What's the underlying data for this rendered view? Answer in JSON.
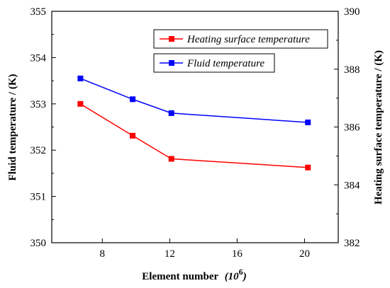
{
  "chart_data": {
    "type": "line",
    "xlabel": "Element number",
    "xlabel_unit": "(10",
    "xlabel_exp": "6",
    "xlabel_close": ")",
    "ylabel_left": "Fluid temperature / (K)",
    "ylabel_right": "Heating surface temperature / (K)",
    "xlim": [
      5,
      22
    ],
    "xticks": [
      8,
      12,
      16,
      20
    ],
    "ylim_left": [
      350,
      355
    ],
    "yticks_left": [
      350,
      351,
      352,
      353,
      354,
      355
    ],
    "ylim_right": [
      382,
      390
    ],
    "yticks_right": [
      382,
      384,
      386,
      388,
      390
    ],
    "legend_placement": "top-right",
    "series": [
      {
        "name": "Heating surface temperature",
        "axis": "right",
        "color": "#ff0000",
        "marker": "square",
        "x": [
          6.7,
          9.8,
          12.1,
          20.2
        ],
        "y": [
          386.8,
          385.7,
          384.9,
          384.6
        ]
      },
      {
        "name": "Fluid temperature",
        "axis": "left",
        "color": "#0000ff",
        "marker": "square",
        "x": [
          6.7,
          9.8,
          12.1,
          20.2
        ],
        "y": [
          353.55,
          353.1,
          352.8,
          352.6
        ]
      }
    ]
  }
}
